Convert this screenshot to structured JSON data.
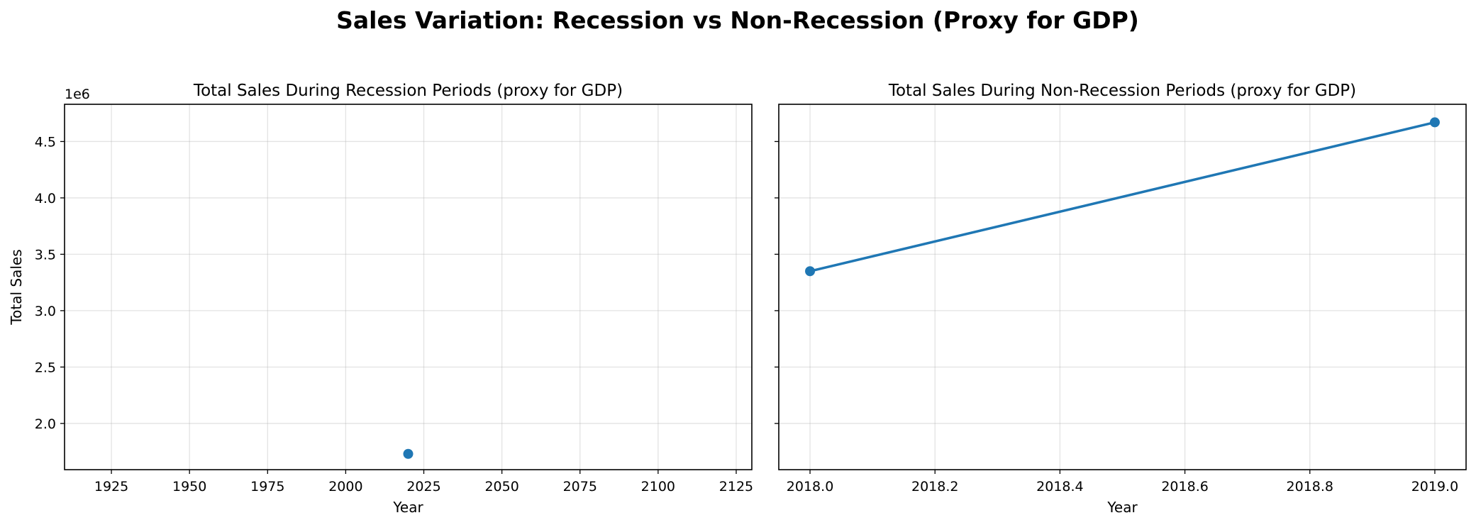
{
  "title": "Sales Variation: Recession vs Non-Recession (Proxy for GDP)",
  "color": "#1f77b4",
  "chart_data": [
    {
      "type": "line",
      "title": "Total Sales During Recession Periods (proxy for GDP)",
      "xlabel": "Year",
      "ylabel": "Total Sales",
      "y_offset_label": "1e6",
      "xlim": [
        1910,
        2130
      ],
      "ylim": [
        1590000,
        4830000
      ],
      "x_ticks": [
        1925,
        1950,
        1975,
        2000,
        2025,
        2050,
        2075,
        2100,
        2125
      ],
      "x_tick_labels": [
        "1925",
        "1950",
        "1975",
        "2000",
        "2025",
        "2050",
        "2075",
        "2100",
        "2125"
      ],
      "y_ticks": [
        2000000,
        2500000,
        3000000,
        3500000,
        4000000,
        4500000
      ],
      "y_tick_labels": [
        "2.0",
        "2.5",
        "3.0",
        "3.5",
        "4.0",
        "4.5"
      ],
      "grid": true,
      "series": [
        {
          "x": [
            2020
          ],
          "y": [
            1730000
          ],
          "marker": "circle"
        }
      ]
    },
    {
      "type": "line",
      "title": "Total Sales During Non-Recession Periods (proxy for GDP)",
      "xlabel": "Year",
      "ylabel": "",
      "xlim": [
        2017.95,
        2019.05
      ],
      "ylim": [
        1590000,
        4830000
      ],
      "x_ticks": [
        2018.0,
        2018.2,
        2018.4,
        2018.6,
        2018.8,
        2019.0
      ],
      "x_tick_labels": [
        "2018.0",
        "2018.2",
        "2018.4",
        "2018.6",
        "2018.8",
        "2019.0"
      ],
      "y_ticks": [
        2000000,
        2500000,
        3000000,
        3500000,
        4000000,
        4500000
      ],
      "y_tick_labels": [],
      "grid": true,
      "series": [
        {
          "x": [
            2018.0,
            2019.0
          ],
          "y": [
            3350000,
            4670000
          ],
          "marker": "circle"
        }
      ]
    }
  ]
}
